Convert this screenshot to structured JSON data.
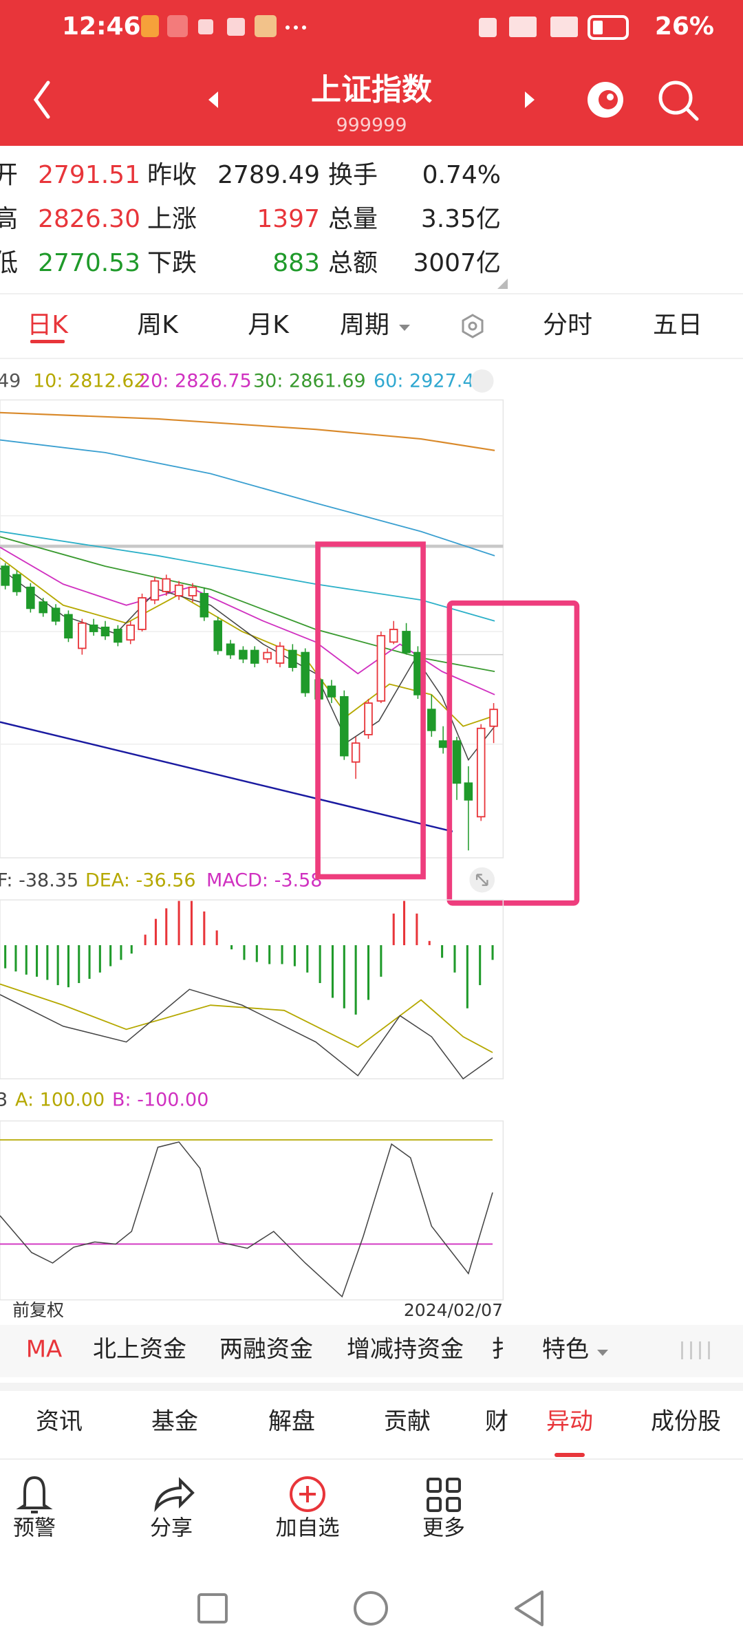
{
  "status": {
    "time": "12:46",
    "battery": "26%"
  },
  "header": {
    "title": "上证指数",
    "code": "999999"
  },
  "quote": {
    "rows": [
      [
        "开",
        "2791.51",
        "昨收",
        "2789.49",
        "换手",
        "0.74%"
      ],
      [
        "高",
        "2826.30",
        "上涨",
        "1397",
        "总量",
        "3.35亿"
      ],
      [
        "低",
        "2770.53",
        "下跌",
        "883",
        "总额",
        "3007亿"
      ]
    ]
  },
  "period_tabs": [
    "日K",
    "周K",
    "月K",
    "周期",
    "分时",
    "五日"
  ],
  "ma_legend": [
    "49",
    "10: 2812.62",
    "20: 2826.75",
    "30: 2861.69",
    "60: 2927.4"
  ],
  "macd_legend": [
    "F: -38.35",
    "DEA: -36.56",
    "MACD: -3.58"
  ],
  "osc_legend": [
    "3",
    "A: 100.00",
    "B: -100.00"
  ],
  "chart_footer": {
    "adjust": "前复权",
    "date": "2024/02/07"
  },
  "indicator_tabs": [
    "MA",
    "北上资金",
    "两融资金",
    "增减持资金",
    "扌",
    "特色"
  ],
  "info_tabs": [
    "资讯",
    "基金",
    "解盘",
    "贡献",
    "财",
    "异动",
    "成份股"
  ],
  "actions": [
    "预警",
    "分享",
    "加自选",
    "更多"
  ]
}
